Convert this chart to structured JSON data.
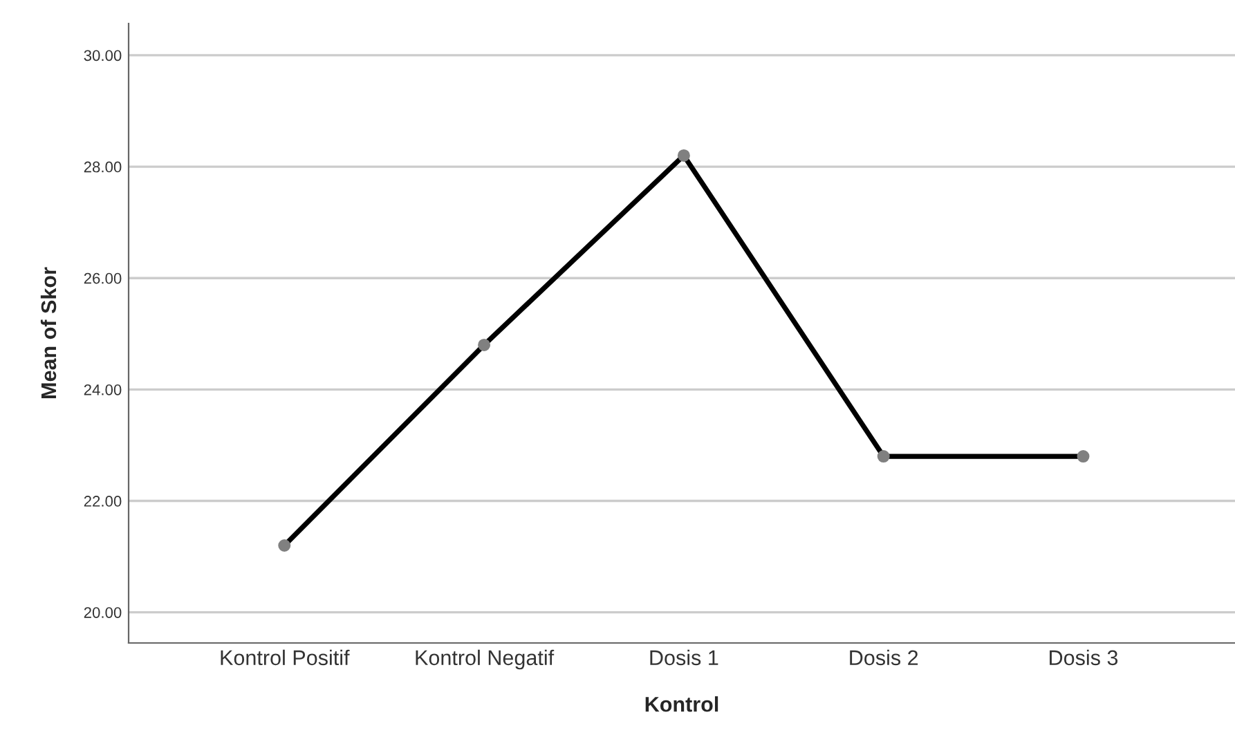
{
  "chart_data": {
    "type": "line",
    "xlabel": "Kontrol",
    "ylabel": "Mean of Skor",
    "categories": [
      "Kontrol Positif",
      "Kontrol Negatif",
      "Dosis 1",
      "Dosis 2",
      "Dosis 3"
    ],
    "series": [
      {
        "color": "#000000",
        "values": [
          21.2,
          24.8,
          28.2,
          22.8,
          22.8
        ]
      }
    ],
    "ylim": [
      19.45,
      30.57
    ],
    "yticks": [
      {
        "value": 20,
        "label": "20.00"
      },
      {
        "value": 22,
        "label": "22.00"
      },
      {
        "value": 24,
        "label": "24.00"
      },
      {
        "value": 26,
        "label": "26.00"
      },
      {
        "value": 28,
        "label": "28.00"
      },
      {
        "value": 30,
        "label": "30.00"
      }
    ],
    "grid": "y",
    "marker": "circle",
    "line_style": "solid"
  }
}
